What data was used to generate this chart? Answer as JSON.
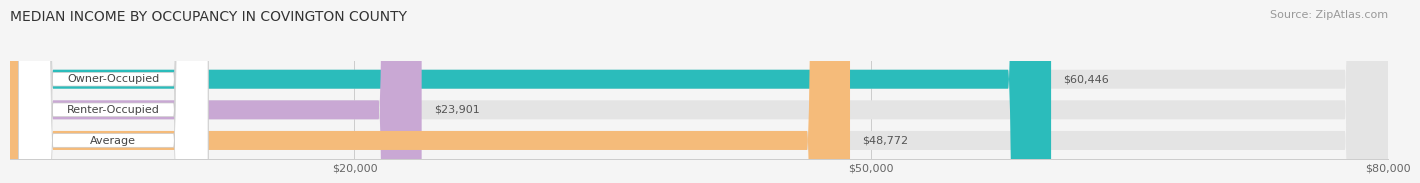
{
  "title": "MEDIAN INCOME BY OCCUPANCY IN COVINGTON COUNTY",
  "source": "Source: ZipAtlas.com",
  "categories": [
    "Owner-Occupied",
    "Renter-Occupied",
    "Average"
  ],
  "values": [
    60446,
    23901,
    48772
  ],
  "bar_colors": [
    "#2bbcbb",
    "#c9a8d4",
    "#f5bb7a"
  ],
  "value_labels": [
    "$60,446",
    "$23,901",
    "$48,772"
  ],
  "xlim": [
    0,
    80000
  ],
  "xticks": [
    20000,
    50000,
    80000
  ],
  "xticklabels": [
    "$20,000",
    "$50,000",
    "$80,000"
  ],
  "background_color": "#f5f5f5",
  "bar_background_color": "#e4e4e4",
  "title_fontsize": 10,
  "source_fontsize": 8,
  "label_fontsize": 8,
  "value_fontsize": 8,
  "tick_fontsize": 8
}
